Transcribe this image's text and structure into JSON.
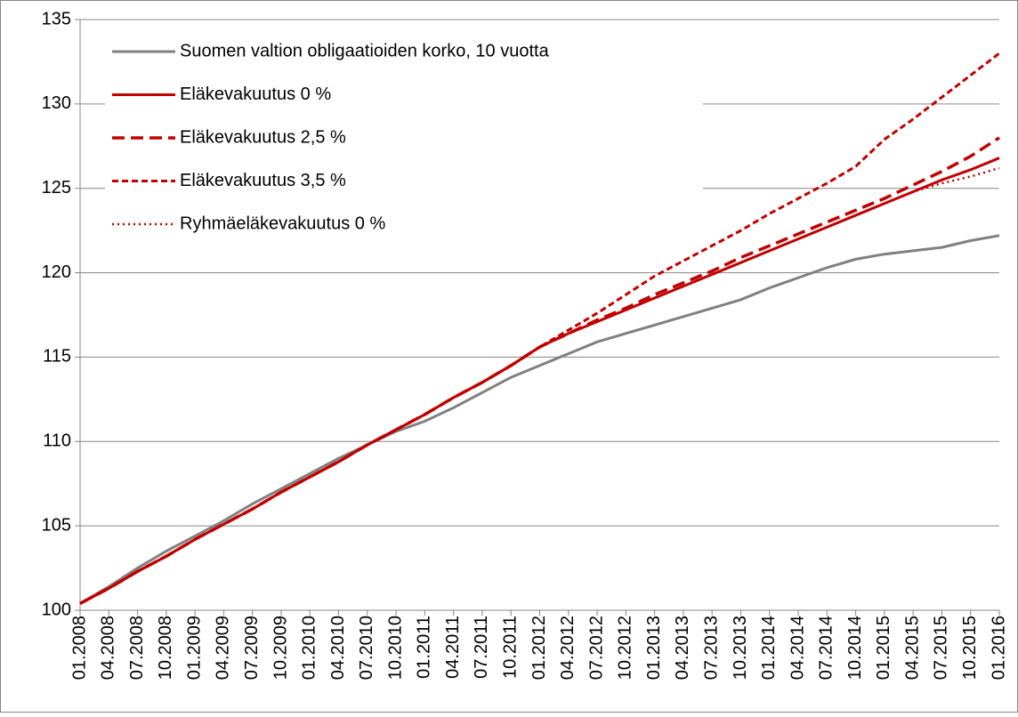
{
  "chart_data": {
    "type": "line",
    "categories": [
      "01.2008",
      "04.2008",
      "07.2008",
      "10.2008",
      "01.2009",
      "04.2009",
      "07.2009",
      "10.2009",
      "01.2010",
      "04.2010",
      "07.2010",
      "10.2010",
      "01.2011",
      "04.2011",
      "07.2011",
      "10.2011",
      "01.2012",
      "04.2012",
      "07.2012",
      "10.2012",
      "01.2013",
      "04.2013",
      "07.2013",
      "10.2013",
      "01.2014",
      "04.2014",
      "07.2014",
      "10.2014",
      "01.2015",
      "04.2015",
      "07.2015",
      "10.2015",
      "01.2016"
    ],
    "series": [
      {
        "name": "Suomen valtion obligaatioiden korko, 10 vuotta",
        "color": "#808080",
        "dash": "solid",
        "values": [
          100.4,
          101.4,
          102.5,
          103.5,
          104.4,
          105.3,
          106.3,
          107.2,
          108.1,
          109.0,
          109.8,
          110.6,
          111.2,
          112.0,
          112.9,
          113.8,
          114.5,
          115.2,
          115.9,
          116.4,
          116.9,
          117.4,
          117.9,
          118.4,
          119.1,
          119.7,
          120.3,
          120.8,
          121.1,
          121.3,
          121.5,
          121.9,
          122.2
        ]
      },
      {
        "name": "Eläkevakuutus 0 %",
        "color": "#c00000",
        "dash": "solid",
        "values": [
          100.4,
          101.3,
          102.3,
          103.2,
          104.2,
          105.1,
          106.0,
          107.0,
          107.9,
          108.8,
          109.8,
          110.7,
          111.6,
          112.6,
          113.5,
          114.5,
          115.6,
          116.4,
          117.1,
          117.8,
          118.5,
          119.2,
          119.9,
          120.6,
          121.3,
          122.0,
          122.7,
          123.4,
          124.1,
          124.8,
          125.5,
          126.1,
          126.8
        ]
      },
      {
        "name": "Eläkevakuutus 2,5 %",
        "color": "#c00000",
        "dash": "long-dash",
        "values": [
          100.4,
          101.3,
          102.3,
          103.2,
          104.2,
          105.1,
          106.0,
          107.0,
          107.9,
          108.8,
          109.8,
          110.7,
          111.6,
          112.6,
          113.5,
          114.5,
          115.6,
          116.4,
          117.2,
          117.9,
          118.7,
          119.4,
          120.1,
          120.9,
          121.6,
          122.3,
          123.0,
          123.7,
          124.4,
          125.2,
          126.0,
          126.9,
          128.0
        ]
      },
      {
        "name": "Eläkevakuutus 3,5 %",
        "color": "#c00000",
        "dash": "dash",
        "values": [
          100.4,
          101.3,
          102.3,
          103.2,
          104.2,
          105.1,
          106.0,
          107.0,
          107.9,
          108.8,
          109.8,
          110.7,
          111.6,
          112.6,
          113.5,
          114.5,
          115.6,
          116.6,
          117.6,
          118.7,
          119.8,
          120.7,
          121.6,
          122.5,
          123.5,
          124.4,
          125.3,
          126.3,
          127.9,
          129.1,
          130.4,
          131.7,
          133.0
        ]
      },
      {
        "name": "Ryhmäeläkevakuutus 0 %",
        "color": "#c00000",
        "dash": "dot",
        "values": [
          100.4,
          101.3,
          102.3,
          103.2,
          104.2,
          105.1,
          106.0,
          107.0,
          107.9,
          108.8,
          109.8,
          110.7,
          111.6,
          112.6,
          113.5,
          114.5,
          115.6,
          116.4,
          117.1,
          117.8,
          118.5,
          119.2,
          119.9,
          120.6,
          121.3,
          122.0,
          122.7,
          123.4,
          124.1,
          124.8,
          125.3,
          125.7,
          126.2
        ]
      }
    ],
    "ylim": [
      100,
      135
    ],
    "yticks": [
      100,
      105,
      110,
      115,
      120,
      125,
      130,
      135
    ],
    "grid": true,
    "legend": "upper-left"
  }
}
